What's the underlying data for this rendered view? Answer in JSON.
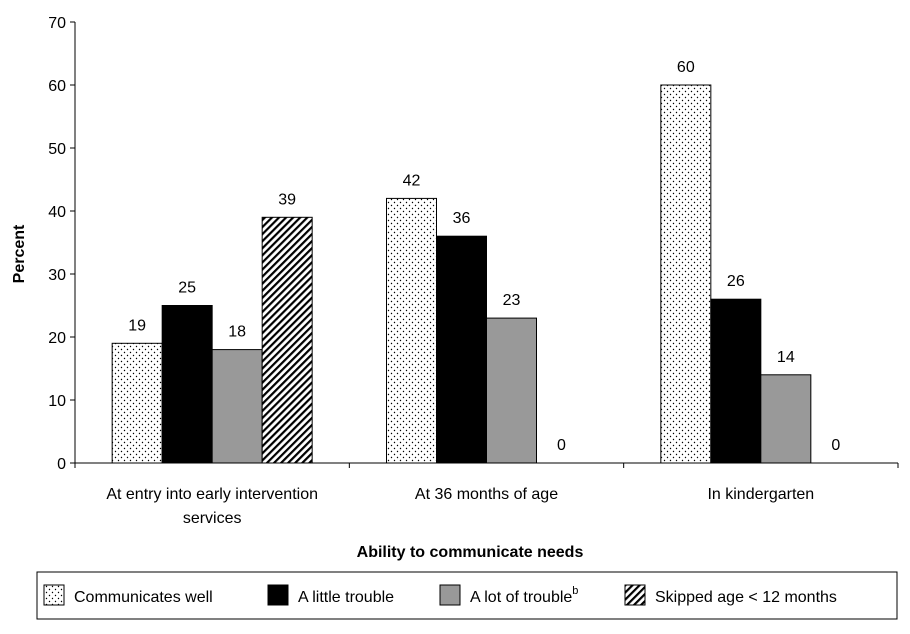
{
  "chart_data": {
    "type": "bar",
    "title": "",
    "xlabel": "Ability to communicate needs",
    "ylabel": "Percent",
    "ylim": [
      0,
      70
    ],
    "yticks": [
      0,
      10,
      20,
      30,
      40,
      50,
      60,
      70
    ],
    "categories": [
      [
        "At entry into early intervention",
        "services"
      ],
      [
        "At 36 months of age"
      ],
      [
        "In kindergarten"
      ]
    ],
    "series": [
      {
        "name": "Communicates well",
        "values": [
          19,
          42,
          60
        ],
        "pattern": "dots",
        "color": "#ffffff"
      },
      {
        "name": "A little trouble",
        "values": [
          25,
          36,
          26
        ],
        "pattern": "solid",
        "color": "#000000"
      },
      {
        "name": "A lot of trouble",
        "name_superscript": "b",
        "values": [
          18,
          23,
          14
        ],
        "pattern": "solid",
        "color": "#999999"
      },
      {
        "name": "Skipped age < 12 months",
        "values": [
          39,
          0,
          0
        ],
        "pattern": "diagonal",
        "color": "#ffffff"
      }
    ],
    "grid": false,
    "legend_position": "bottom"
  }
}
